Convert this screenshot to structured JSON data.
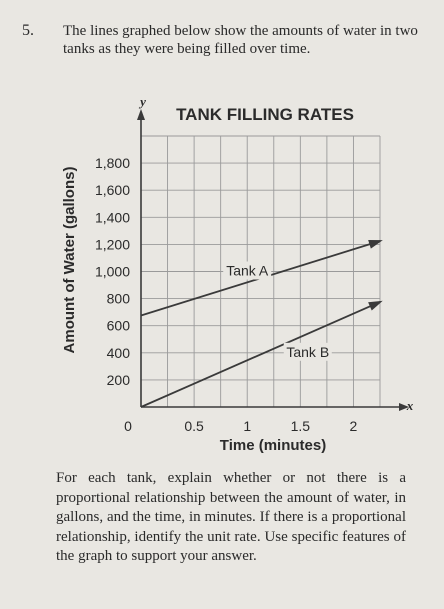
{
  "question_number": "5.",
  "intro_text": "The lines graphed below show the amounts of water in two tanks as they were being filled over time.",
  "chart_data": {
    "type": "line",
    "title": "TANK FILLING RATES",
    "xlabel": "Time (minutes)",
    "ylabel": "Amount of Water (gallons)",
    "x_axis_letter": "x",
    "y_axis_letter": "y",
    "xlim": [
      0,
      2.25
    ],
    "ylim": [
      0,
      2000
    ],
    "x_grid_step": 0.25,
    "y_grid_step": 200,
    "x_ticks": [
      {
        "value": 0,
        "label": "0"
      },
      {
        "value": 0.5,
        "label": "0.5"
      },
      {
        "value": 1,
        "label": "1"
      },
      {
        "value": 1.5,
        "label": "1.5"
      },
      {
        "value": 2,
        "label": "2"
      }
    ],
    "y_ticks": [
      {
        "value": 200,
        "label": "200"
      },
      {
        "value": 400,
        "label": "400"
      },
      {
        "value": 600,
        "label": "600"
      },
      {
        "value": 800,
        "label": "800"
      },
      {
        "value": 1000,
        "label": "1,000"
      },
      {
        "value": 1200,
        "label": "1,200"
      },
      {
        "value": 1400,
        "label": "1,400"
      },
      {
        "value": 1600,
        "label": "1,600"
      },
      {
        "value": 1800,
        "label": "1,800"
      }
    ],
    "grid": true,
    "series": [
      {
        "name": "Tank A",
        "x": [
          0,
          2.25
        ],
        "y": [
          675,
          1225
        ],
        "label_at": [
          1,
          1000
        ]
      },
      {
        "name": "Tank B",
        "x": [
          0,
          2.25
        ],
        "y": [
          0,
          775
        ],
        "label_at": [
          1.57,
          400
        ]
      }
    ]
  },
  "question_text": "For each tank, explain whether or not there is a proportional relationship between the amount of water, in gallons, and the time, in minutes.  If there is a proportional relationship, identify the unit rate.  Use specific features of the graph to support your answer.",
  "colors": {
    "background": "#e9e7e2",
    "grid": "#9a9a9a",
    "line": "#3a3a3a",
    "text": "#2b2b2b"
  }
}
